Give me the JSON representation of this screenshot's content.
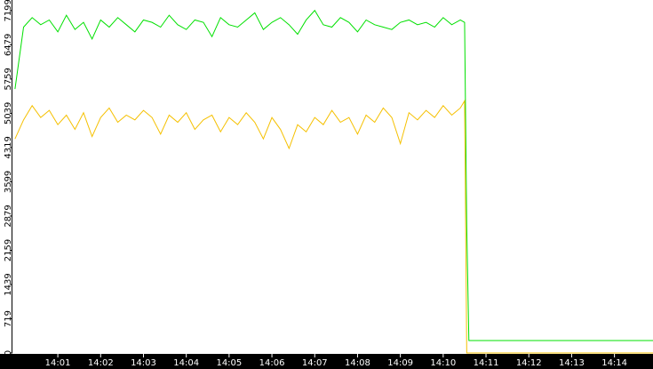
{
  "chart_data": {
    "type": "line",
    "x": [
      840,
      840.2,
      840.4,
      840.6,
      840.8,
      841,
      841.2,
      841.4,
      841.6,
      841.8,
      842,
      842.2,
      842.4,
      842.6,
      842.8,
      843,
      843.2,
      843.4,
      843.6,
      843.8,
      844,
      844.2,
      844.4,
      844.6,
      844.8,
      845,
      845.2,
      845.4,
      845.6,
      845.8,
      846,
      846.2,
      846.4,
      846.6,
      846.8,
      847,
      847.2,
      847.4,
      847.6,
      847.8,
      848,
      848.2,
      848.4,
      848.6,
      848.8,
      849,
      849.2,
      849.4,
      849.6,
      849.8,
      850,
      850.2,
      850.4,
      850.5,
      850.55,
      850.6,
      854.96
    ],
    "series": [
      {
        "color": "#00e000",
        "values": [
          5550,
          6850,
          7050,
          6900,
          7000,
          6750,
          7100,
          6800,
          6950,
          6600,
          7000,
          6850,
          7050,
          6900,
          6750,
          7000,
          6950,
          6850,
          7100,
          6900,
          6800,
          7000,
          6950,
          6650,
          7050,
          6900,
          6850,
          7000,
          7150,
          6800,
          6950,
          7050,
          6900,
          6700,
          7000,
          7200,
          6900,
          6850,
          7050,
          6950,
          6750,
          7000,
          6900,
          6850,
          6800,
          6950,
          7000,
          6900,
          6950,
          6850,
          7050,
          6900,
          7000,
          6950,
          2650,
          262,
          262
        ]
      },
      {
        "color": "#f5c000",
        "values": [
          4500,
          4900,
          5200,
          4950,
          5100,
          4800,
          5000,
          4700,
          5050,
          4550,
          4950,
          5150,
          4850,
          5000,
          4900,
          5100,
          4950,
          4600,
          5000,
          4850,
          5050,
          4700,
          4900,
          5000,
          4650,
          4950,
          4800,
          5050,
          4850,
          4500,
          4950,
          4700,
          4300,
          4800,
          4650,
          4950,
          4800,
          5100,
          4850,
          4950,
          4600,
          5000,
          4850,
          5150,
          4950,
          4400,
          5050,
          4900,
          5100,
          4950,
          5200,
          5000,
          5150,
          5300,
          0,
          0,
          0
        ]
      }
    ],
    "xlim": [
      839.94,
      854.9
    ],
    "xticks": [
      {
        "value": 841,
        "label": "14:01"
      },
      {
        "value": 842,
        "label": "14:02"
      },
      {
        "value": 843,
        "label": "14:03"
      },
      {
        "value": 844,
        "label": "14:04"
      },
      {
        "value": 845,
        "label": "14:05"
      },
      {
        "value": 846,
        "label": "14:06"
      },
      {
        "value": 847,
        "label": "14:07"
      },
      {
        "value": 848,
        "label": "14:08"
      },
      {
        "value": 849,
        "label": "14:09"
      },
      {
        "value": 850,
        "label": "14:10"
      },
      {
        "value": 851,
        "label": "14:11"
      },
      {
        "value": 852,
        "label": "14:12"
      },
      {
        "value": 853,
        "label": "14:13"
      },
      {
        "value": 854,
        "label": "14:14"
      }
    ],
    "ylim": [
      0,
      7420
    ],
    "yticks": [
      0,
      719,
      1439,
      2159,
      2879,
      3599,
      4319,
      5039,
      5759,
      6479,
      7199
    ]
  }
}
